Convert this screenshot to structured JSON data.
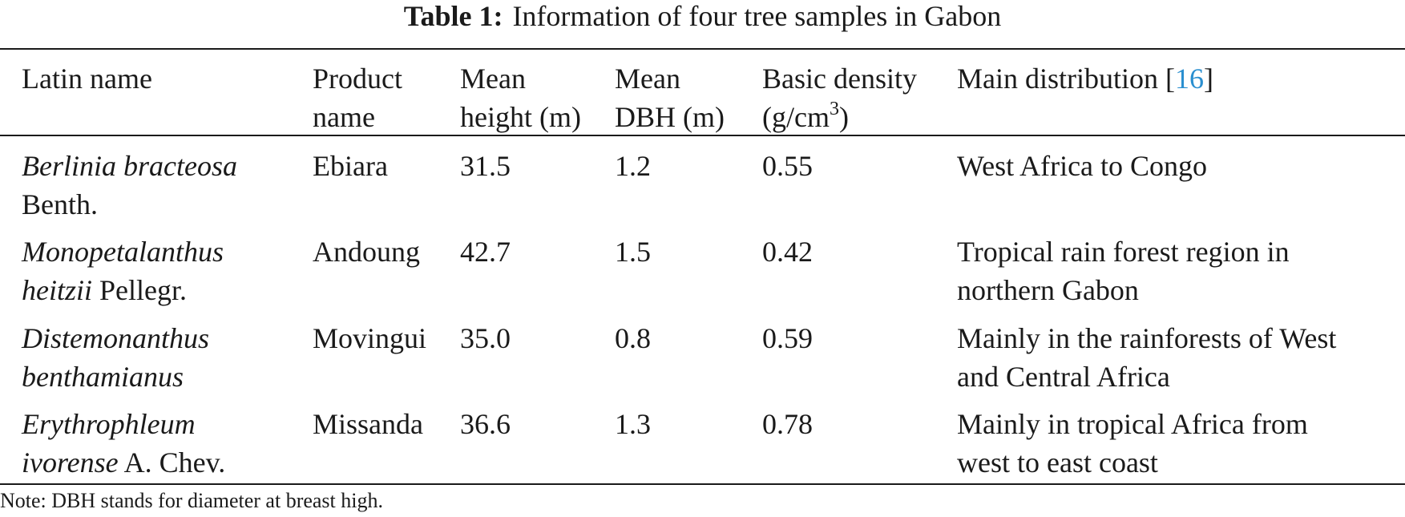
{
  "caption": {
    "label": "Table 1:",
    "text": "Information of four tree samples in Gabon"
  },
  "headers": {
    "latin_name": "Latin name",
    "product_name": [
      "Product",
      "name"
    ],
    "mean_height": [
      "Mean",
      "height (m)"
    ],
    "mean_dbh": [
      "Mean",
      "DBH (m)"
    ],
    "basic_density": [
      "Basic density",
      "(g/cm",
      "3",
      ")"
    ],
    "main_distribution": "Main distribution [",
    "main_distribution_ref": "16",
    "main_distribution_close": "]"
  },
  "rows": [
    {
      "latin_italic_1": "Berlinia bracteosa",
      "latin_rest_1": "",
      "latin_italic_2": "",
      "latin_rest_2": "Benth.",
      "product": "Ebiara",
      "height": "31.5",
      "dbh": "1.2",
      "density": "0.55",
      "distribution": [
        "West Africa to Congo",
        ""
      ]
    },
    {
      "latin_italic_1": "Monopetalanthus",
      "latin_rest_1": "",
      "latin_italic_2": "heitzii",
      "latin_rest_2": " Pellegr.",
      "product": "Andoung",
      "height": "42.7",
      "dbh": "1.5",
      "density": "0.42",
      "distribution": [
        "Tropical rain forest region in",
        "northern Gabon"
      ]
    },
    {
      "latin_italic_1": "Distemonanthus",
      "latin_rest_1": "",
      "latin_italic_2": "benthamianus",
      "latin_rest_2": "",
      "product": "Movingui",
      "height": "35.0",
      "dbh": "0.8",
      "density": "0.59",
      "distribution": [
        "Mainly in the rainforests of West",
        "and Central Africa"
      ]
    },
    {
      "latin_italic_1": "Erythrophleum",
      "latin_rest_1": "",
      "latin_italic_2": "ivorense",
      "latin_rest_2": " A. Chev.",
      "product": "Missanda",
      "height": "36.6",
      "dbh": "1.3",
      "density": "0.78",
      "distribution": [
        "Mainly in tropical Africa from",
        "west to east coast"
      ]
    }
  ],
  "note": "Note: DBH stands for diameter at breast high.",
  "colors": {
    "text": "#1a1a1a",
    "reference_link": "#2a8fd0",
    "background": "#ffffff"
  }
}
